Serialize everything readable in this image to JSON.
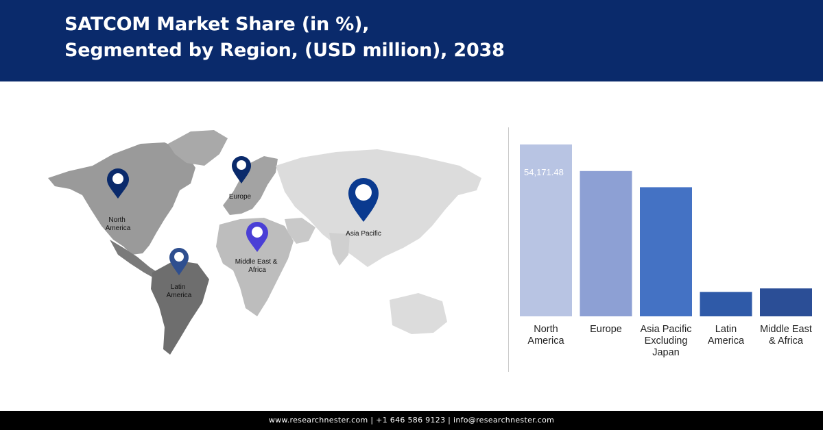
{
  "header": {
    "title_line1": "SATCOM Market Share (in %),",
    "title_line2": "Segmented by Region, (USD million), 2038"
  },
  "map": {
    "markers": [
      {
        "label": [
          "North",
          "America"
        ],
        "color": "#0a2a6b"
      },
      {
        "label": [
          "Europe"
        ],
        "color": "#0a2a6b"
      },
      {
        "label": [
          "Asia Pacific"
        ],
        "color": "#0a3a8f"
      },
      {
        "label": [
          "Middle East &",
          "Africa"
        ],
        "color": "#4a3fd6"
      },
      {
        "label": [
          "Latin",
          "America"
        ],
        "color": "#2f4f8f"
      }
    ]
  },
  "chart_data": {
    "type": "bar",
    "categories": [
      [
        "North",
        "America"
      ],
      [
        "Europe"
      ],
      [
        "Asia Pacific",
        "Excluding",
        "Japan"
      ],
      [
        "Latin",
        "America"
      ],
      [
        "Middle East",
        "& Africa"
      ]
    ],
    "values": [
      54171.48,
      45800,
      40700,
      7700,
      8800
    ],
    "data_labels": [
      "54,171.48",
      "",
      "",
      "",
      ""
    ],
    "colors": [
      "#b8c4e3",
      "#8da0d4",
      "#4472c4",
      "#2f5aa8",
      "#2b4e96"
    ],
    "ylim": [
      0,
      54171.48
    ],
    "grid": false,
    "title": "",
    "xlabel": "",
    "ylabel": ""
  },
  "footer": {
    "text": "www.researchnester.com | +1 646 586 9123 | info@researchnester.com"
  }
}
